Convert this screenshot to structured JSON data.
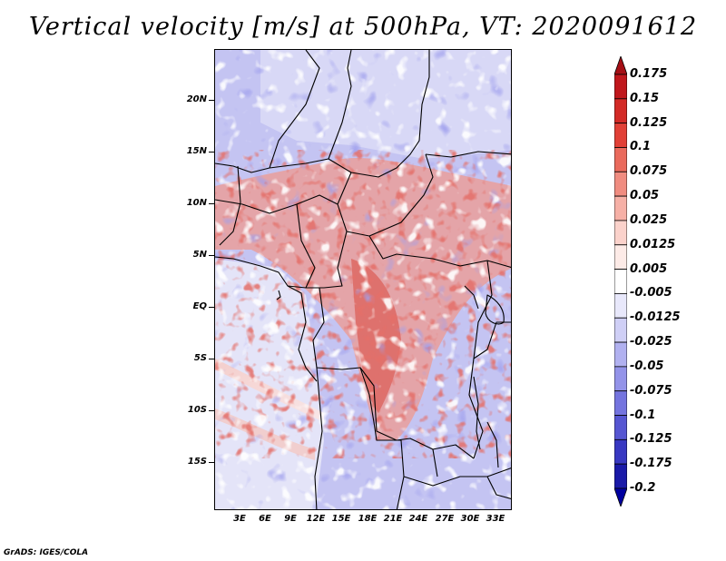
{
  "title": "Vertical velocity [m/s] at 500hPa, VT: 2020091612",
  "map": {
    "lat_labels": [
      "20N",
      "15N",
      "10N",
      "5N",
      "EQ",
      "5S",
      "10S",
      "15S"
    ],
    "lon_labels": [
      "3E",
      "6E",
      "9E",
      "12E",
      "15E",
      "18E",
      "21E",
      "24E",
      "27E",
      "30E",
      "33E"
    ]
  },
  "colorbar": {
    "labels": [
      "0.175",
      "0.15",
      "0.125",
      "0.1",
      "0.075",
      "0.05",
      "0.025",
      "0.0125",
      "0.005",
      "-0.005",
      "-0.0125",
      "-0.025",
      "-0.05",
      "-0.075",
      "-0.1",
      "-0.125",
      "-0.175",
      "-0.2"
    ],
    "colors": [
      "#a50f15",
      "#c0171c",
      "#d32a26",
      "#e14036",
      "#ea6a5c",
      "#f08c80",
      "#f6b0a6",
      "#fbd2cb",
      "#fdebe7",
      "#ffffff",
      "#e8e8fb",
      "#cfcff6",
      "#b1b1f0",
      "#9393e9",
      "#7474df",
      "#5656d2",
      "#3838c2",
      "#1a1aa8",
      "#0000a0"
    ]
  },
  "credit": "GrADS: IGES/COLA"
}
